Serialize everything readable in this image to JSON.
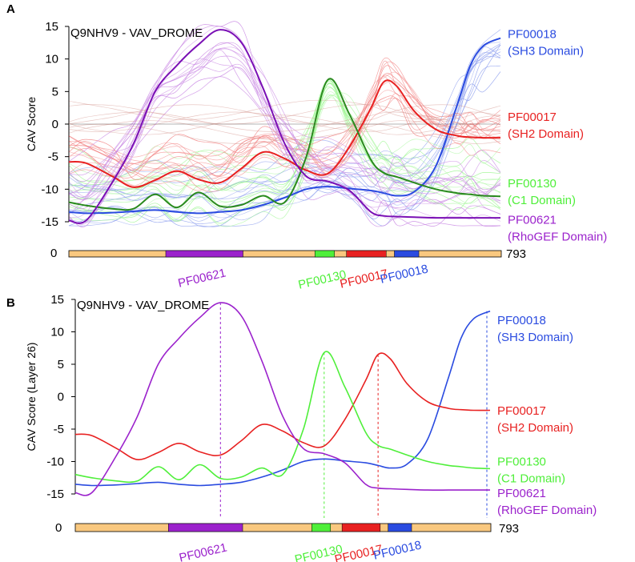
{
  "colors": {
    "PF00018": "#2a4be0",
    "PF00017": "#e82121",
    "PF00130": "#4fef3a",
    "PF00621": "#9b22cc",
    "PF00130_dark": "#2a8a1e",
    "PF00621_dark": "#7a10b5",
    "linker": "#f9c87f",
    "axis": "#000000"
  },
  "chart_data": [
    {
      "panel": "A",
      "type": "line",
      "title": "Q9NHV9 - VAV_DROME",
      "ylabel": "CAV Score",
      "xlabel": "",
      "ylim": [
        -15,
        15
      ],
      "yticks": [
        15,
        10,
        5,
        0,
        -5,
        -10,
        -15
      ],
      "xlim": [
        0,
        1
      ],
      "zero_line": true,
      "x": [
        0,
        0.04,
        0.1,
        0.15,
        0.2,
        0.25,
        0.3,
        0.35,
        0.4,
        0.45,
        0.5,
        0.55,
        0.6,
        0.65,
        0.7,
        0.73,
        0.76,
        0.8,
        0.85,
        0.9,
        0.93,
        0.96,
        1.0
      ],
      "series": [
        {
          "name": "PF00018",
          "role": "mean",
          "values": [
            -13.5,
            -13.7,
            -13.6,
            -13.4,
            -13.2,
            -13.5,
            -13.7,
            -13.5,
            -13.2,
            -12.4,
            -11.3,
            -10,
            -9.6,
            -9.9,
            -10.2,
            -10.6,
            -11,
            -10.4,
            -6.5,
            3,
            9,
            12,
            13.2
          ]
        },
        {
          "name": "PF00017",
          "role": "mean",
          "values": [
            -5.8,
            -6,
            -8,
            -9.7,
            -8.6,
            -7.2,
            -8.5,
            -9,
            -6.8,
            -4.3,
            -5.3,
            -7.1,
            -7.6,
            -3.5,
            2.5,
            6.5,
            5.8,
            2,
            -0.8,
            -1.8,
            -2,
            -2.1,
            -2.1
          ]
        },
        {
          "name": "PF00130",
          "role": "mean",
          "values": [
            -12,
            -12.5,
            -13,
            -13,
            -10.8,
            -12.8,
            -10.5,
            -12.6,
            -12.4,
            -11,
            -12,
            -5,
            6.8,
            1.5,
            -5.5,
            -7.5,
            -8.1,
            -9,
            -10,
            -10.6,
            -10.8,
            -11,
            -11.1
          ]
        },
        {
          "name": "PF00621",
          "role": "mean",
          "values": [
            -14.8,
            -14.8,
            -9,
            -3,
            5,
            9,
            12.2,
            14.5,
            12.5,
            5.5,
            -3,
            -8,
            -8.8,
            -10.2,
            -13.5,
            -14.1,
            -14.2,
            -14.3,
            -14.4,
            -14.4,
            -14.4,
            -14.4,
            -14.4
          ]
        }
      ],
      "legend": [
        {
          "id": "PF00018",
          "name": "(SH3 Domain)",
          "color_key": "PF00018",
          "y_anchor": 13.2
        },
        {
          "id": "PF00017",
          "name": "(SH2 Domain)",
          "color_key": "PF00017",
          "y_anchor": 0.5
        },
        {
          "id": "PF00130",
          "name": "(C1 Domain)",
          "color_key": "PF00130",
          "y_anchor": -9.7
        },
        {
          "id": "PF00621",
          "name": "(RhoGEF Domain)",
          "color_key": "PF00621",
          "y_anchor": -15.3
        }
      ],
      "sequence_track": {
        "start_label": "0",
        "end_label": "793",
        "length": 793,
        "segments": [
          {
            "id": "PF00621",
            "start": 178,
            "end": 320
          },
          {
            "id": "PF00130",
            "start": 452,
            "end": 488
          },
          {
            "id": "PF00017",
            "start": 510,
            "end": 583
          },
          {
            "id": "PF00018",
            "start": 598,
            "end": 643
          }
        ],
        "labels": [
          "PF00621",
          "PF00130",
          "PF00017",
          "PF00018"
        ]
      }
    },
    {
      "panel": "B",
      "type": "line",
      "title": "Q9NHV9 - VAV_DROME",
      "ylabel": "CAV Score (Layer 26)",
      "xlabel": "",
      "ylim": [
        -15,
        15
      ],
      "yticks": [
        15,
        10,
        5,
        0,
        -5,
        -10,
        -15
      ],
      "xlim": [
        0,
        1
      ],
      "x": [
        0,
        0.04,
        0.1,
        0.15,
        0.2,
        0.25,
        0.3,
        0.35,
        0.4,
        0.45,
        0.5,
        0.55,
        0.6,
        0.65,
        0.7,
        0.73,
        0.76,
        0.8,
        0.85,
        0.9,
        0.93,
        0.96,
        1.0
      ],
      "series": [
        {
          "name": "PF00018",
          "values": [
            -13.5,
            -13.7,
            -13.6,
            -13.4,
            -13.2,
            -13.5,
            -13.7,
            -13.5,
            -13.2,
            -12.4,
            -11.3,
            -10,
            -9.6,
            -9.9,
            -10.2,
            -10.6,
            -11,
            -10.4,
            -6.5,
            3,
            9,
            12,
            13.2
          ]
        },
        {
          "name": "PF00017",
          "values": [
            -5.8,
            -6,
            -8,
            -9.7,
            -8.6,
            -7.2,
            -8.5,
            -9,
            -6.8,
            -4.3,
            -5.3,
            -7.1,
            -7.6,
            -3.5,
            2.5,
            6.5,
            5.8,
            2,
            -0.8,
            -1.8,
            -2,
            -2.1,
            -2.1
          ]
        },
        {
          "name": "PF00130",
          "values": [
            -12,
            -12.5,
            -13,
            -13,
            -10.8,
            -12.8,
            -10.5,
            -12.6,
            -12.4,
            -11,
            -12,
            -5,
            6.8,
            1.5,
            -5.5,
            -7.5,
            -8.1,
            -9,
            -10,
            -10.6,
            -10.8,
            -11,
            -11.1
          ]
        },
        {
          "name": "PF00621",
          "values": [
            -14.8,
            -14.8,
            -9,
            -3,
            5,
            9,
            12.2,
            14.5,
            12.5,
            5.5,
            -3,
            -8,
            -8.8,
            -10.2,
            -13.5,
            -14.1,
            -14.2,
            -14.3,
            -14.4,
            -14.4,
            -14.4,
            -14.4,
            -14.4
          ]
        }
      ],
      "peaks": [
        {
          "id": "PF00621",
          "x": 0.35,
          "y": 14.5
        },
        {
          "id": "PF00130",
          "x": 0.6,
          "y": 6.8
        },
        {
          "id": "PF00017",
          "x": 0.73,
          "y": 6.5
        },
        {
          "id": "PF00018",
          "x": 1.0,
          "y": 13.2
        }
      ],
      "legend": [
        {
          "id": "PF00018",
          "name": "(SH3 Domain)",
          "color_key": "PF00018",
          "y_anchor": 11.2
        },
        {
          "id": "PF00017",
          "name": "(SH2 Domain)",
          "color_key": "PF00017",
          "y_anchor": -2.8
        },
        {
          "id": "PF00130",
          "name": "(C1 Domain)",
          "color_key": "PF00130",
          "y_anchor": -10.6
        },
        {
          "id": "PF00621",
          "name": "(RhoGEF Domain)",
          "color_key": "PF00621",
          "y_anchor": -15.5
        }
      ],
      "sequence_track": {
        "start_label": "0",
        "end_label": "793",
        "length": 793,
        "segments": [
          {
            "id": "PF00621",
            "start": 178,
            "end": 320
          },
          {
            "id": "PF00130",
            "start": 452,
            "end": 488
          },
          {
            "id": "PF00017",
            "start": 510,
            "end": 583
          },
          {
            "id": "PF00018",
            "start": 598,
            "end": 643
          }
        ],
        "labels": [
          "PF00621",
          "PF00130",
          "PF00017",
          "PF00018"
        ]
      }
    }
  ],
  "panel_labels": [
    "A",
    "B"
  ]
}
